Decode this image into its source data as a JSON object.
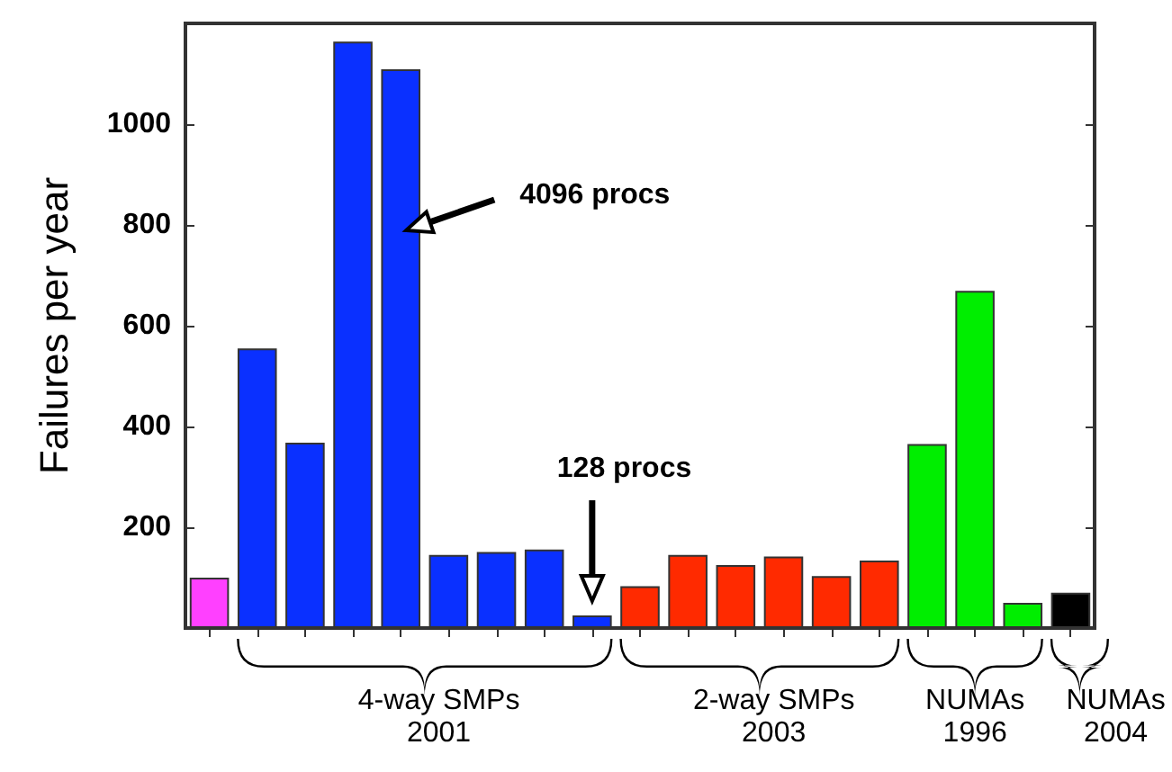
{
  "chart_data": {
    "type": "bar",
    "ylabel": "Failures per year",
    "categories": [
      null,
      null,
      null,
      null,
      null,
      null,
      null,
      null,
      null,
      null,
      null,
      null,
      null,
      null,
      null,
      null,
      null,
      null,
      null
    ],
    "values": [
      100,
      555,
      368,
      1164,
      1109,
      145,
      151,
      156,
      25,
      83,
      145,
      125,
      142,
      103,
      134,
      365,
      669,
      50,
      70
    ],
    "colors": [
      "#ff40ff",
      "#0a30ff",
      "#0a30ff",
      "#0a30ff",
      "#0a30ff",
      "#0a30ff",
      "#0a30ff",
      "#0a30ff",
      "#0a30ff",
      "#ff2a00",
      "#ff2a00",
      "#ff2a00",
      "#ff2a00",
      "#ff2a00",
      "#ff2a00",
      "#00ee00",
      "#00ee00",
      "#00ee00",
      "#000000"
    ],
    "ylim": [
      0,
      1200
    ],
    "yticks": [
      200,
      400,
      600,
      800,
      1000
    ],
    "grid": false,
    "annotations": [
      "4096 procs",
      "128 procs",
      "4-way SMPs\n2001",
      "2-way SMPs\n2003",
      "NUMAs\n1996",
      "NUMAs\n2004"
    ]
  }
}
